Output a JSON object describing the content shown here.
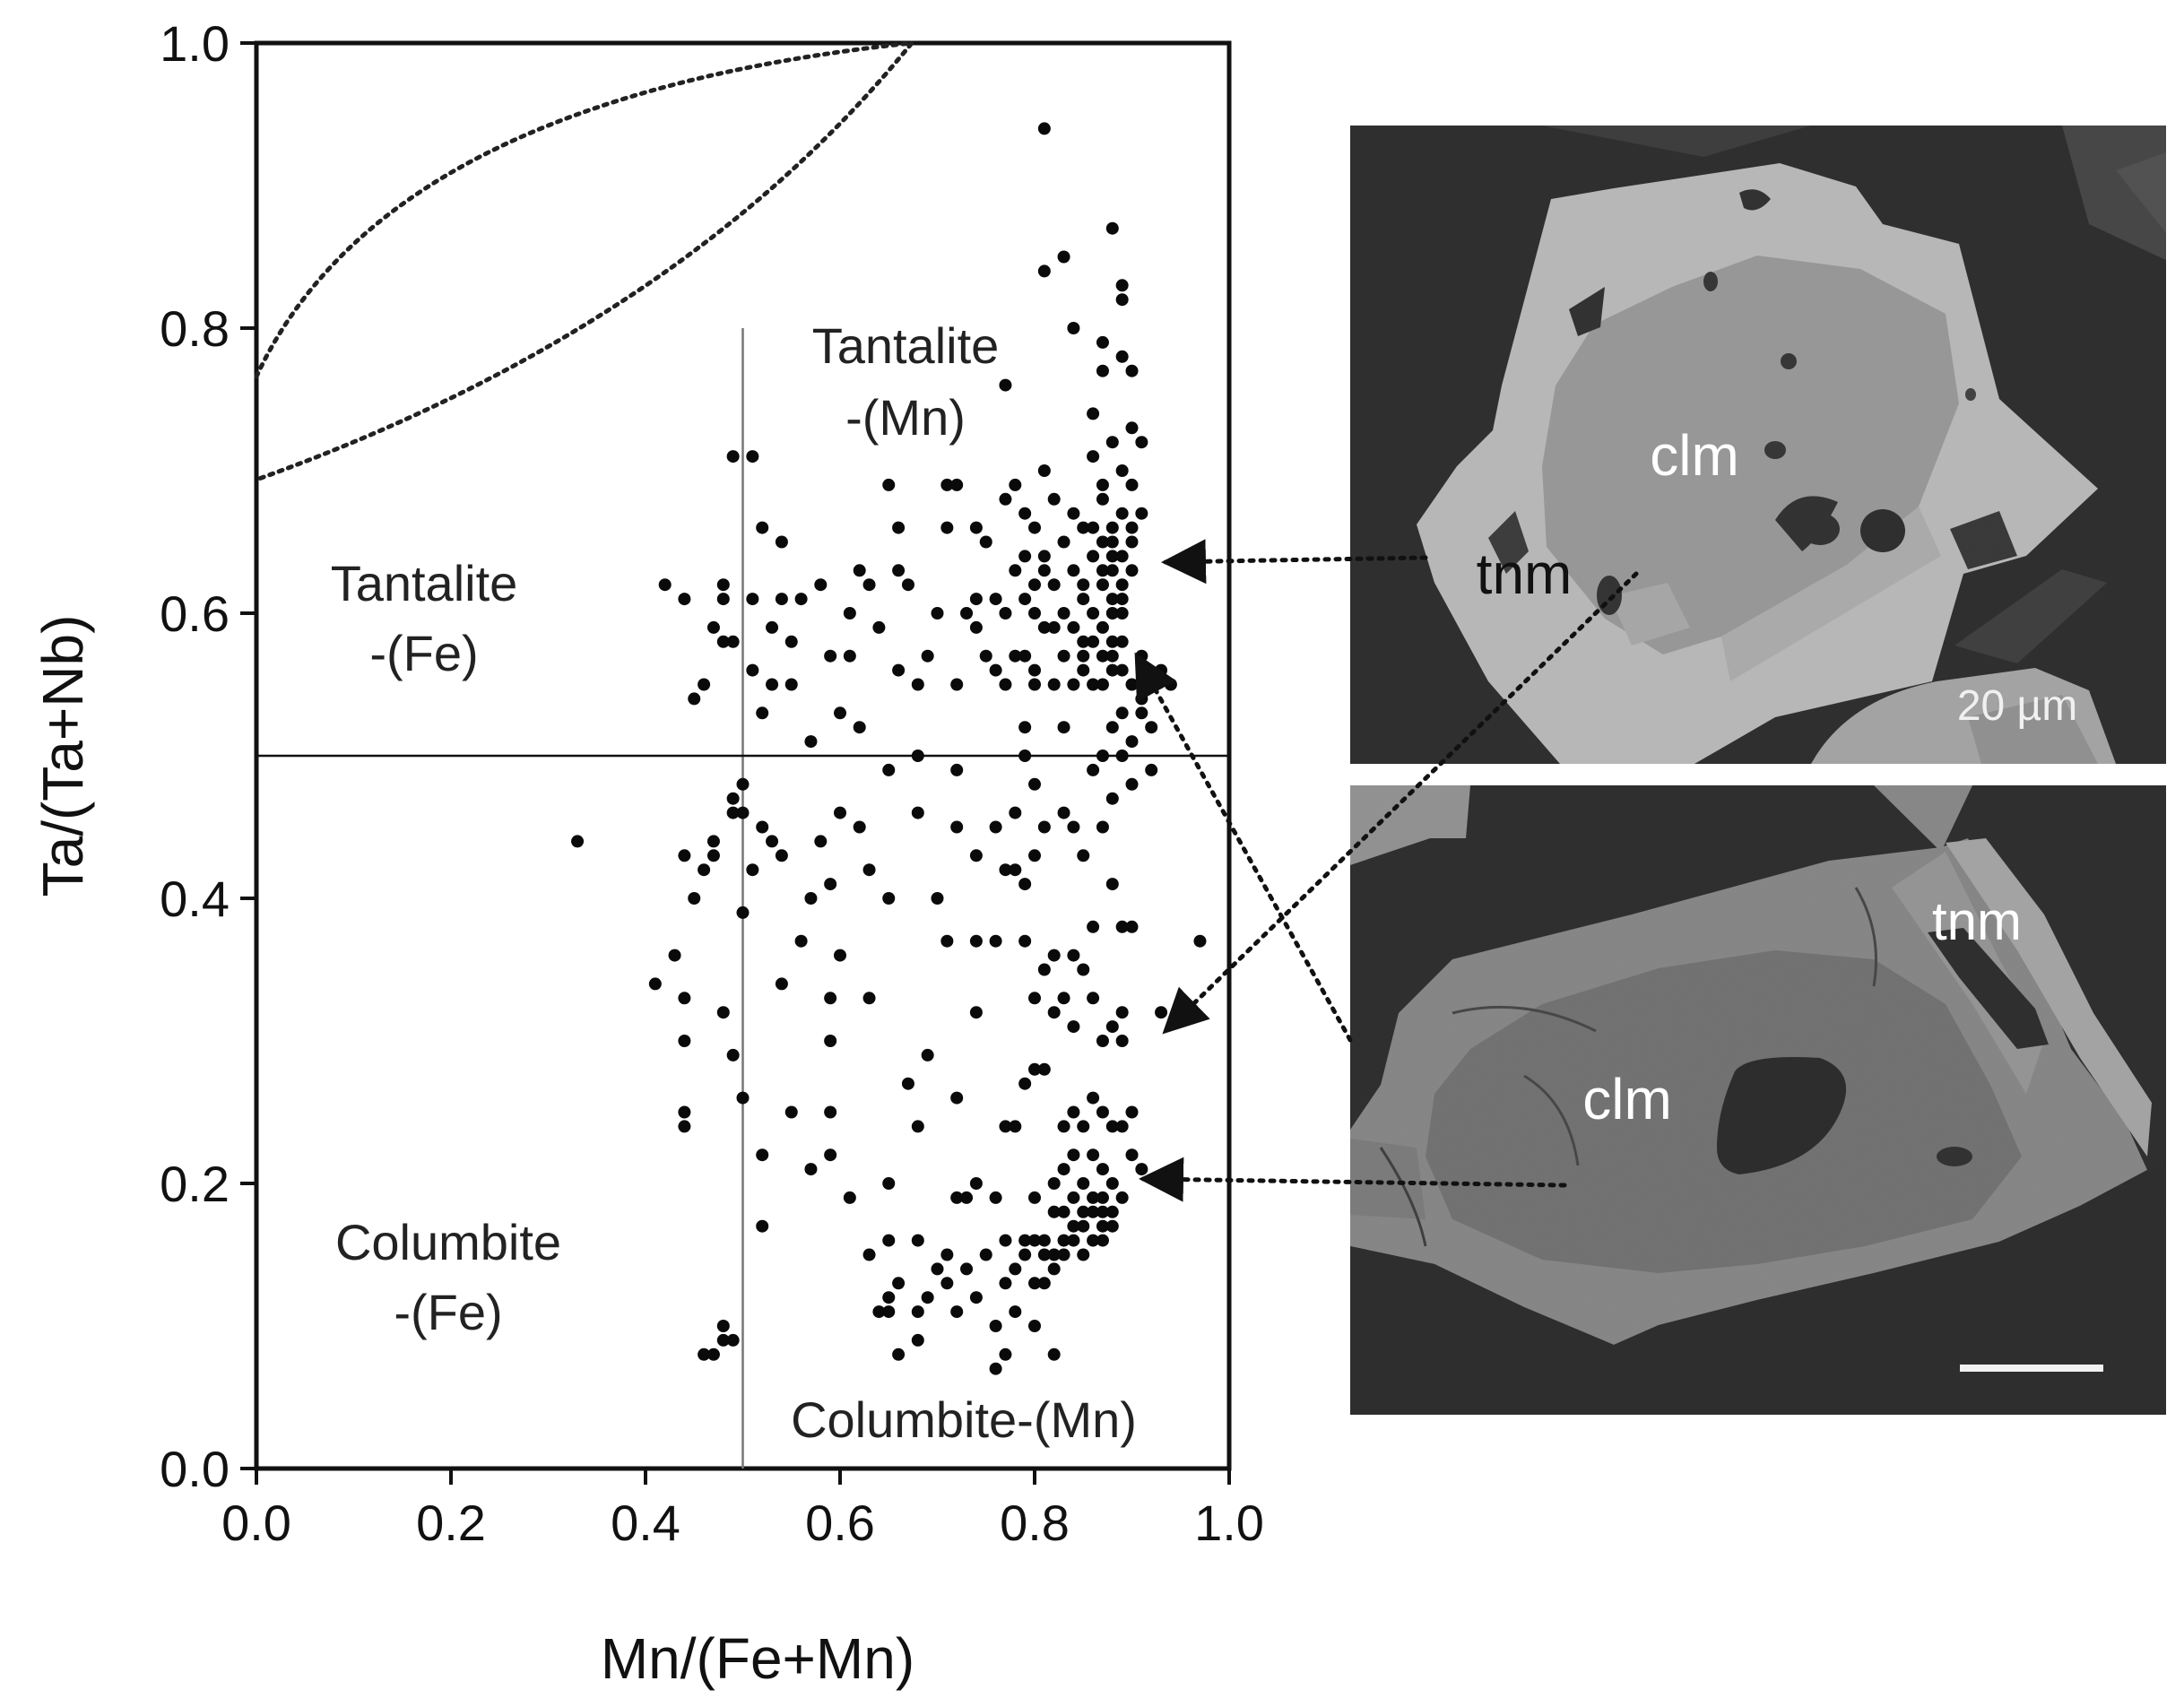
{
  "chart_data": {
    "type": "scatter",
    "xlabel": "Mn/(Fe+Mn)",
    "ylabel": "Ta/(Ta+Nb)",
    "xlim": [
      0,
      1
    ],
    "ylim": [
      0,
      1
    ],
    "x_ticks": [
      "0.0",
      "0.2",
      "0.4",
      "0.6",
      "0.8",
      "1.0"
    ],
    "y_ticks": [
      "0.0",
      "0.2",
      "0.4",
      "0.6",
      "0.8",
      "1.0"
    ],
    "grid": false,
    "legend": "none",
    "field_lines": {
      "x": 0.5,
      "y": 0.5
    },
    "field_labels": {
      "tantalite_mn": [
        "Tantalite",
        "-(Mn)"
      ],
      "tantalite_fe": [
        "Tantalite",
        "-(Fe)"
      ],
      "columbite_fe": [
        "Columbite",
        "-(Fe)"
      ],
      "columbite_mn": [
        "Columbite-(Mn)"
      ]
    },
    "points": [
      [
        0.33,
        0.44
      ],
      [
        0.41,
        0.34
      ],
      [
        0.42,
        0.62
      ],
      [
        0.43,
        0.36
      ],
      [
        0.44,
        0.33
      ],
      [
        0.44,
        0.3
      ],
      [
        0.44,
        0.25
      ],
      [
        0.44,
        0.24
      ],
      [
        0.44,
        0.43
      ],
      [
        0.44,
        0.61
      ],
      [
        0.45,
        0.54
      ],
      [
        0.45,
        0.4
      ],
      [
        0.46,
        0.55
      ],
      [
        0.46,
        0.42
      ],
      [
        0.46,
        0.08
      ],
      [
        0.47,
        0.44
      ],
      [
        0.47,
        0.43
      ],
      [
        0.47,
        0.59
      ],
      [
        0.47,
        0.08
      ],
      [
        0.48,
        0.62
      ],
      [
        0.48,
        0.61
      ],
      [
        0.48,
        0.58
      ],
      [
        0.48,
        0.32
      ],
      [
        0.48,
        0.1
      ],
      [
        0.48,
        0.09
      ],
      [
        0.49,
        0.46
      ],
      [
        0.49,
        0.47
      ],
      [
        0.49,
        0.29
      ],
      [
        0.49,
        0.09
      ],
      [
        0.49,
        0.58
      ],
      [
        0.49,
        0.71
      ],
      [
        0.5,
        0.39
      ],
      [
        0.5,
        0.48
      ],
      [
        0.5,
        0.26
      ],
      [
        0.5,
        0.46
      ],
      [
        0.51,
        0.61
      ],
      [
        0.51,
        0.56
      ],
      [
        0.51,
        0.42
      ],
      [
        0.51,
        0.71
      ],
      [
        0.52,
        0.22
      ],
      [
        0.52,
        0.66
      ],
      [
        0.52,
        0.53
      ],
      [
        0.52,
        0.45
      ],
      [
        0.52,
        0.17
      ],
      [
        0.53,
        0.55
      ],
      [
        0.53,
        0.44
      ],
      [
        0.53,
        0.59
      ],
      [
        0.54,
        0.61
      ],
      [
        0.54,
        0.43
      ],
      [
        0.54,
        0.34
      ],
      [
        0.54,
        0.65
      ],
      [
        0.55,
        0.25
      ],
      [
        0.55,
        0.58
      ],
      [
        0.55,
        0.55
      ],
      [
        0.56,
        0.61
      ],
      [
        0.56,
        0.37
      ],
      [
        0.57,
        0.21
      ],
      [
        0.57,
        0.51
      ],
      [
        0.57,
        0.4
      ],
      [
        0.58,
        0.62
      ],
      [
        0.58,
        0.44
      ],
      [
        0.59,
        0.57
      ],
      [
        0.59,
        0.33
      ],
      [
        0.59,
        0.3
      ],
      [
        0.59,
        0.25
      ],
      [
        0.59,
        0.22
      ],
      [
        0.59,
        0.41
      ],
      [
        0.6,
        0.53
      ],
      [
        0.6,
        0.36
      ],
      [
        0.6,
        0.46
      ],
      [
        0.61,
        0.6
      ],
      [
        0.61,
        0.57
      ],
      [
        0.61,
        0.19
      ],
      [
        0.62,
        0.63
      ],
      [
        0.62,
        0.52
      ],
      [
        0.62,
        0.45
      ],
      [
        0.63,
        0.62
      ],
      [
        0.63,
        0.42
      ],
      [
        0.63,
        0.33
      ],
      [
        0.63,
        0.15
      ],
      [
        0.64,
        0.59
      ],
      [
        0.64,
        0.11
      ],
      [
        0.65,
        0.49
      ],
      [
        0.65,
        0.4
      ],
      [
        0.65,
        0.2
      ],
      [
        0.65,
        0.12
      ],
      [
        0.65,
        0.11
      ],
      [
        0.65,
        0.16
      ],
      [
        0.65,
        0.69
      ],
      [
        0.66,
        0.66
      ],
      [
        0.66,
        0.08
      ],
      [
        0.66,
        0.63
      ],
      [
        0.66,
        0.56
      ],
      [
        0.66,
        0.13
      ],
      [
        0.67,
        0.27
      ],
      [
        0.67,
        0.62
      ],
      [
        0.68,
        0.55
      ],
      [
        0.68,
        0.5
      ],
      [
        0.68,
        0.46
      ],
      [
        0.68,
        0.11
      ],
      [
        0.68,
        0.09
      ],
      [
        0.68,
        0.16
      ],
      [
        0.68,
        0.24
      ],
      [
        0.69,
        0.12
      ],
      [
        0.69,
        0.29
      ],
      [
        0.69,
        0.57
      ],
      [
        0.7,
        0.4
      ],
      [
        0.7,
        0.14
      ],
      [
        0.7,
        0.6
      ],
      [
        0.71,
        0.66
      ],
      [
        0.71,
        0.69
      ],
      [
        0.71,
        0.13
      ],
      [
        0.71,
        0.37
      ],
      [
        0.71,
        0.15
      ],
      [
        0.72,
        0.49
      ],
      [
        0.72,
        0.45
      ],
      [
        0.72,
        0.26
      ],
      [
        0.72,
        0.19
      ],
      [
        0.72,
        0.11
      ],
      [
        0.72,
        0.69
      ],
      [
        0.72,
        0.55
      ],
      [
        0.73,
        0.6
      ],
      [
        0.73,
        0.14
      ],
      [
        0.73,
        0.19
      ],
      [
        0.74,
        0.66
      ],
      [
        0.74,
        0.61
      ],
      [
        0.74,
        0.59
      ],
      [
        0.74,
        0.43
      ],
      [
        0.74,
        0.37
      ],
      [
        0.74,
        0.32
      ],
      [
        0.74,
        0.2
      ],
      [
        0.74,
        0.12
      ],
      [
        0.75,
        0.15
      ],
      [
        0.75,
        0.57
      ],
      [
        0.75,
        0.65
      ],
      [
        0.76,
        0.45
      ],
      [
        0.76,
        0.37
      ],
      [
        0.76,
        0.19
      ],
      [
        0.76,
        0.1
      ],
      [
        0.76,
        0.07
      ],
      [
        0.76,
        0.61
      ],
      [
        0.76,
        0.56
      ],
      [
        0.77,
        0.6
      ],
      [
        0.77,
        0.42
      ],
      [
        0.77,
        0.24
      ],
      [
        0.77,
        0.16
      ],
      [
        0.77,
        0.08
      ],
      [
        0.77,
        0.13
      ],
      [
        0.77,
        0.68
      ],
      [
        0.77,
        0.55
      ],
      [
        0.77,
        0.76
      ],
      [
        0.78,
        0.63
      ],
      [
        0.78,
        0.57
      ],
      [
        0.78,
        0.46
      ],
      [
        0.78,
        0.42
      ],
      [
        0.78,
        0.24
      ],
      [
        0.78,
        0.14
      ],
      [
        0.78,
        0.11
      ],
      [
        0.78,
        0.69
      ],
      [
        0.79,
        0.64
      ],
      [
        0.79,
        0.52
      ],
      [
        0.79,
        0.5
      ],
      [
        0.79,
        0.41
      ],
      [
        0.79,
        0.37
      ],
      [
        0.79,
        0.27
      ],
      [
        0.79,
        0.16
      ],
      [
        0.79,
        0.15
      ],
      [
        0.79,
        0.61
      ],
      [
        0.79,
        0.57
      ],
      [
        0.79,
        0.67
      ],
      [
        0.8,
        0.66
      ],
      [
        0.8,
        0.6
      ],
      [
        0.8,
        0.56
      ],
      [
        0.8,
        0.48
      ],
      [
        0.8,
        0.43
      ],
      [
        0.8,
        0.33
      ],
      [
        0.8,
        0.28
      ],
      [
        0.8,
        0.19
      ],
      [
        0.8,
        0.16
      ],
      [
        0.8,
        0.13
      ],
      [
        0.8,
        0.1
      ],
      [
        0.8,
        0.62
      ],
      [
        0.8,
        0.55
      ],
      [
        0.81,
        0.7
      ],
      [
        0.81,
        0.64
      ],
      [
        0.81,
        0.63
      ],
      [
        0.81,
        0.59
      ],
      [
        0.81,
        0.45
      ],
      [
        0.81,
        0.35
      ],
      [
        0.81,
        0.28
      ],
      [
        0.81,
        0.16
      ],
      [
        0.81,
        0.15
      ],
      [
        0.81,
        0.13
      ],
      [
        0.81,
        0.94
      ],
      [
        0.81,
        0.84
      ],
      [
        0.82,
        0.68
      ],
      [
        0.82,
        0.59
      ],
      [
        0.82,
        0.55
      ],
      [
        0.82,
        0.36
      ],
      [
        0.82,
        0.32
      ],
      [
        0.82,
        0.2
      ],
      [
        0.82,
        0.18
      ],
      [
        0.82,
        0.15
      ],
      [
        0.82,
        0.08
      ],
      [
        0.82,
        0.14
      ],
      [
        0.82,
        0.62
      ],
      [
        0.83,
        0.65
      ],
      [
        0.83,
        0.57
      ],
      [
        0.83,
        0.52
      ],
      [
        0.83,
        0.46
      ],
      [
        0.83,
        0.33
      ],
      [
        0.83,
        0.24
      ],
      [
        0.83,
        0.21
      ],
      [
        0.83,
        0.18
      ],
      [
        0.83,
        0.16
      ],
      [
        0.83,
        0.15
      ],
      [
        0.83,
        0.6
      ],
      [
        0.83,
        0.85
      ],
      [
        0.84,
        0.8
      ],
      [
        0.84,
        0.67
      ],
      [
        0.84,
        0.63
      ],
      [
        0.84,
        0.59
      ],
      [
        0.84,
        0.55
      ],
      [
        0.84,
        0.45
      ],
      [
        0.84,
        0.36
      ],
      [
        0.84,
        0.31
      ],
      [
        0.84,
        0.25
      ],
      [
        0.84,
        0.22
      ],
      [
        0.84,
        0.19
      ],
      [
        0.84,
        0.17
      ],
      [
        0.84,
        0.16
      ],
      [
        0.85,
        0.66
      ],
      [
        0.85,
        0.61
      ],
      [
        0.85,
        0.57
      ],
      [
        0.85,
        0.56
      ],
      [
        0.85,
        0.43
      ],
      [
        0.85,
        0.35
      ],
      [
        0.85,
        0.24
      ],
      [
        0.85,
        0.2
      ],
      [
        0.85,
        0.18
      ],
      [
        0.85,
        0.17
      ],
      [
        0.85,
        0.15
      ],
      [
        0.85,
        0.62
      ],
      [
        0.85,
        0.58
      ],
      [
        0.86,
        0.74
      ],
      [
        0.86,
        0.66
      ],
      [
        0.86,
        0.64
      ],
      [
        0.86,
        0.6
      ],
      [
        0.86,
        0.58
      ],
      [
        0.86,
        0.55
      ],
      [
        0.86,
        0.49
      ],
      [
        0.86,
        0.38
      ],
      [
        0.86,
        0.33
      ],
      [
        0.86,
        0.26
      ],
      [
        0.86,
        0.22
      ],
      [
        0.86,
        0.19
      ],
      [
        0.86,
        0.18
      ],
      [
        0.86,
        0.16
      ],
      [
        0.86,
        0.71
      ],
      [
        0.87,
        0.68
      ],
      [
        0.87,
        0.65
      ],
      [
        0.87,
        0.63
      ],
      [
        0.87,
        0.62
      ],
      [
        0.87,
        0.59
      ],
      [
        0.87,
        0.57
      ],
      [
        0.87,
        0.55
      ],
      [
        0.87,
        0.5
      ],
      [
        0.87,
        0.45
      ],
      [
        0.87,
        0.3
      ],
      [
        0.87,
        0.25
      ],
      [
        0.87,
        0.21
      ],
      [
        0.87,
        0.19
      ],
      [
        0.87,
        0.18
      ],
      [
        0.87,
        0.17
      ],
      [
        0.87,
        0.16
      ],
      [
        0.87,
        0.79
      ],
      [
        0.87,
        0.77
      ],
      [
        0.87,
        0.69
      ],
      [
        0.88,
        0.66
      ],
      [
        0.88,
        0.63
      ],
      [
        0.88,
        0.61
      ],
      [
        0.88,
        0.6
      ],
      [
        0.88,
        0.58
      ],
      [
        0.88,
        0.57
      ],
      [
        0.88,
        0.56
      ],
      [
        0.88,
        0.52
      ],
      [
        0.88,
        0.47
      ],
      [
        0.88,
        0.41
      ],
      [
        0.88,
        0.31
      ],
      [
        0.88,
        0.24
      ],
      [
        0.88,
        0.2
      ],
      [
        0.88,
        0.18
      ],
      [
        0.88,
        0.17
      ],
      [
        0.88,
        0.64
      ],
      [
        0.88,
        0.65
      ],
      [
        0.88,
        0.72
      ],
      [
        0.88,
        0.87
      ],
      [
        0.89,
        0.83
      ],
      [
        0.89,
        0.78
      ],
      [
        0.89,
        0.7
      ],
      [
        0.89,
        0.67
      ],
      [
        0.89,
        0.64
      ],
      [
        0.89,
        0.62
      ],
      [
        0.89,
        0.6
      ],
      [
        0.89,
        0.58
      ],
      [
        0.89,
        0.56
      ],
      [
        0.89,
        0.53
      ],
      [
        0.89,
        0.5
      ],
      [
        0.89,
        0.38
      ],
      [
        0.89,
        0.32
      ],
      [
        0.89,
        0.3
      ],
      [
        0.89,
        0.24
      ],
      [
        0.89,
        0.19
      ],
      [
        0.89,
        0.82
      ],
      [
        0.89,
        0.61
      ],
      [
        0.9,
        0.77
      ],
      [
        0.9,
        0.73
      ],
      [
        0.9,
        0.69
      ],
      [
        0.9,
        0.66
      ],
      [
        0.9,
        0.63
      ],
      [
        0.9,
        0.55
      ],
      [
        0.9,
        0.51
      ],
      [
        0.9,
        0.48
      ],
      [
        0.9,
        0.38
      ],
      [
        0.9,
        0.22
      ],
      [
        0.9,
        0.25
      ],
      [
        0.9,
        0.65
      ],
      [
        0.91,
        0.72
      ],
      [
        0.91,
        0.67
      ],
      [
        0.91,
        0.57
      ],
      [
        0.91,
        0.53
      ],
      [
        0.91,
        0.21
      ],
      [
        0.91,
        0.54
      ],
      [
        0.92,
        0.52
      ],
      [
        0.92,
        0.49
      ],
      [
        0.93,
        0.56
      ],
      [
        0.93,
        0.32
      ],
      [
        0.94,
        0.55
      ],
      [
        0.97,
        0.37
      ]
    ]
  },
  "images": {
    "top": {
      "label_clm": "clm",
      "label_tnm": "tnm",
      "scale_label": "20 µm"
    },
    "bottom": {
      "label_clm": "clm",
      "label_tnm": "tnm"
    }
  }
}
